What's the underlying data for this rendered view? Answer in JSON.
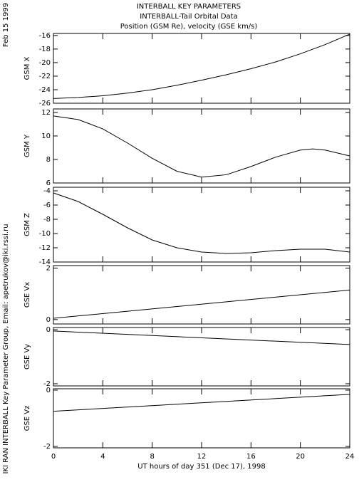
{
  "header": {
    "title": [
      "INTERBALL KEY PARAMETERS",
      "INTERBALL-Tail Orbital Data",
      "Position (GSM Re), velocity (GSE km/s)"
    ],
    "date": "Feb 15 1999",
    "credit": "IKI RAN INTERBALL Key Parameter Group, Email: apetrukov@iki.rssi.ru",
    "xlabel": "UT hours of day 351 (Dec 17), 1998"
  },
  "chart_data": [
    {
      "type": "line",
      "ylabel": "GSM X",
      "x": [
        0,
        2,
        4,
        6,
        8,
        10,
        12,
        14,
        16,
        18,
        20,
        22,
        24
      ],
      "values": [
        -25.3,
        -25.15,
        -24.9,
        -24.5,
        -24.0,
        -23.35,
        -22.6,
        -21.8,
        -20.9,
        -19.9,
        -18.7,
        -17.35,
        -15.8
      ],
      "xlim": [
        0,
        24
      ],
      "xticks": [
        0,
        4,
        8,
        12,
        16,
        20,
        24
      ],
      "ylim": [
        -26,
        -15.7
      ],
      "yticks": [
        -16,
        -18,
        -20,
        -22,
        -24,
        -26
      ]
    },
    {
      "type": "line",
      "ylabel": "GSM Y",
      "x": [
        0,
        2,
        4,
        6,
        8,
        10,
        12,
        14,
        16,
        18,
        20,
        21,
        22,
        24
      ],
      "values": [
        11.7,
        11.4,
        10.6,
        9.4,
        8.1,
        7.0,
        6.5,
        6.7,
        7.4,
        8.2,
        8.8,
        8.9,
        8.8,
        8.3
      ],
      "xlim": [
        0,
        24
      ],
      "xticks": [
        0,
        4,
        8,
        12,
        16,
        20,
        24
      ],
      "ylim": [
        6,
        12.3
      ],
      "yticks": [
        6,
        8,
        10,
        12
      ]
    },
    {
      "type": "line",
      "ylabel": "GSM Z",
      "x": [
        0,
        2,
        4,
        6,
        8,
        10,
        12,
        14,
        16,
        18,
        20,
        22,
        24
      ],
      "values": [
        -4.3,
        -5.5,
        -7.3,
        -9.2,
        -10.9,
        -12.0,
        -12.6,
        -12.8,
        -12.7,
        -12.4,
        -12.2,
        -12.2,
        -12.6
      ],
      "xlim": [
        0,
        24
      ],
      "xticks": [
        0,
        4,
        8,
        12,
        16,
        20,
        24
      ],
      "ylim": [
        -14,
        -3.5
      ],
      "yticks": [
        -4,
        -6,
        -8,
        -10,
        -12,
        -14
      ]
    },
    {
      "type": "line",
      "ylabel": "GSE Vx",
      "x": [
        0,
        24
      ],
      "values": [
        0.05,
        1.15
      ],
      "xlim": [
        0,
        24
      ],
      "xticks": [
        0,
        4,
        8,
        12,
        16,
        20,
        24
      ],
      "ylim": [
        -0.17,
        2.1
      ],
      "yticks": [
        0,
        2
      ]
    },
    {
      "type": "line",
      "ylabel": "GSE Vy",
      "x": [
        0,
        24
      ],
      "values": [
        -0.05,
        -0.55
      ],
      "xlim": [
        0,
        24
      ],
      "xticks": [
        0,
        4,
        8,
        12,
        16,
        20,
        24
      ],
      "ylim": [
        -2.08,
        0.08
      ],
      "yticks": [
        0,
        -2
      ]
    },
    {
      "type": "line",
      "ylabel": "GSE Vz",
      "x": [
        0,
        24
      ],
      "values": [
        -0.75,
        -0.15
      ],
      "xlim": [
        0,
        24
      ],
      "xticks": [
        0,
        4,
        8,
        12,
        16,
        20,
        24
      ],
      "ylim": [
        -2.05,
        0.05
      ],
      "yticks": [
        0,
        -2
      ]
    }
  ]
}
